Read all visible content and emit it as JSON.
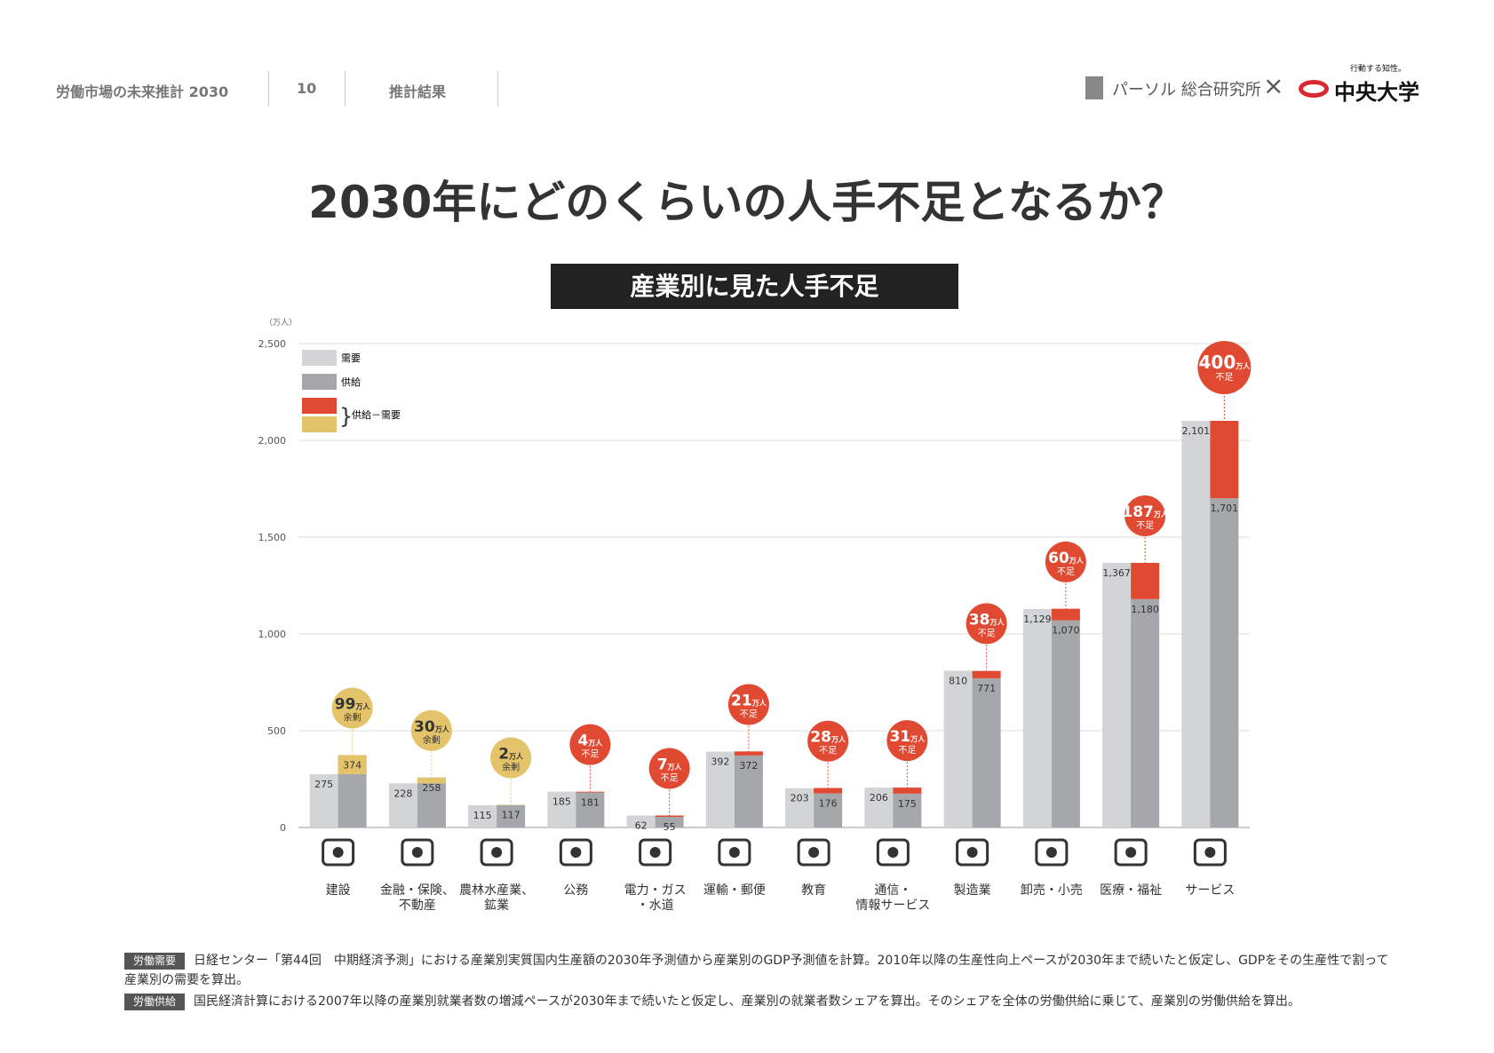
{
  "header": {
    "report": "労働市場の未来推計 2030",
    "page": "10",
    "section": "推計結果",
    "logo_left": "パーソル 総合研究所",
    "logo_right": "中央大学",
    "tagline": "行動する知性。"
  },
  "title": "2030年にどのくらいの人手不足となるか？",
  "chart_data": {
    "type": "bar",
    "title": "産業別に見た人手不足",
    "y_unit": "（万人）",
    "categories": [
      "建設",
      "金融・保険、\n不動産",
      "農林水産業、\n鉱業",
      "公務",
      "電力・ガス\n・水道",
      "運輸・郵便",
      "教育",
      "通信・\n情報サービス",
      "製造業",
      "卸売・小売",
      "医療・福祉",
      "サービス"
    ],
    "series": [
      {
        "name": "需要",
        "color": "#d3d4d6",
        "values": [
          275,
          228,
          115,
          185,
          62,
          392,
          203,
          206,
          810,
          1129,
          1367,
          2101
        ],
        "value_labels": [
          "275",
          "228",
          "115",
          "185",
          "62",
          "392",
          "203",
          "206",
          "810",
          "1,129",
          "1,367",
          "2,101"
        ]
      },
      {
        "name": "供給",
        "color": "#a6a7ab",
        "values": [
          374,
          258,
          117,
          181,
          55,
          372,
          176,
          175,
          771,
          1070,
          1180,
          1701
        ],
        "value_labels": [
          "374",
          "258",
          "117",
          "181",
          "55",
          "372",
          "176",
          "175",
          "771",
          "1,070",
          "1,180",
          "1,701"
        ]
      }
    ],
    "gap": {
      "name": "供給－需要",
      "unit": "万人",
      "values": [
        99,
        30,
        2,
        4,
        7,
        21,
        28,
        31,
        38,
        60,
        187,
        400
      ],
      "labels": [
        "余剰",
        "余剰",
        "余剰",
        "不足",
        "不足",
        "不足",
        "不足",
        "不足",
        "不足",
        "不足",
        "不足",
        "不足"
      ],
      "shortage_color": "#e04a33",
      "surplus_color": "#e4c46a"
    },
    "ylim": [
      0,
      2500
    ],
    "yticks": [
      0,
      500,
      {
        "value": 1000,
        "label": "1,000"
      },
      {
        "value": 1500,
        "label": "1,500"
      },
      {
        "value": 2000,
        "label": "2,000"
      },
      {
        "value": 2500,
        "label": "2,500"
      }
    ],
    "grid": true
  },
  "notes": [
    {
      "tag": "労働需要",
      "text": "日経センター「第44回　中期経済予測」における産業別実質国内生産額の2030年予測値から産業別のGDP予測値を計算。2010年以降の生産性向上ペースが2030年まで続いたと仮定し、GDPをその生産性で割って産業別の需要を算出。"
    },
    {
      "tag": "労働供給",
      "text": "国民経済計算における2007年以降の産業別就業者数の増減ペースが2030年まで続いたと仮定し、産業別の就業者数シェアを算出。そのシェアを全体の労働供給に乗じて、産業別の労働供給を算出。"
    }
  ]
}
